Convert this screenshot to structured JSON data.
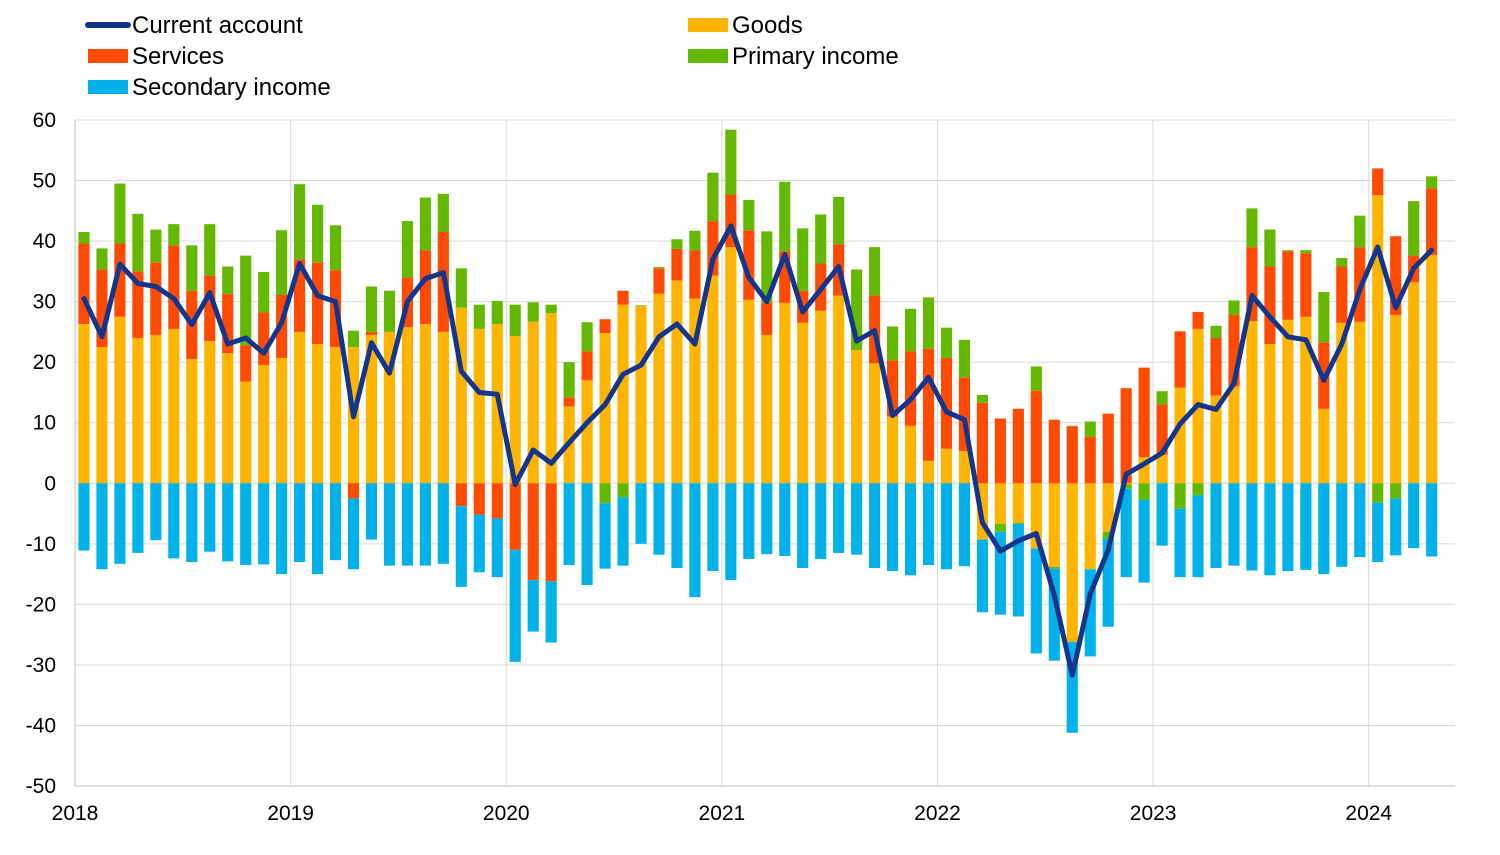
{
  "chart_data": {
    "type": "bar",
    "subtype": "stacked bar with line overlay",
    "x_start": "2018-01",
    "x_end": "2024-04",
    "x_frequency": "monthly",
    "ylim": [
      -50,
      60
    ],
    "yticks": [
      -50,
      -40,
      -30,
      -20,
      -10,
      0,
      10,
      20,
      30,
      40,
      50,
      60
    ],
    "xticks": [
      "2018",
      "2019",
      "2020",
      "2021",
      "2022",
      "2023",
      "2024"
    ],
    "grid": true,
    "legend_position": "top",
    "series": [
      {
        "name": "Current account",
        "kind": "line",
        "color": "#13368c",
        "values": [
          30.5,
          24.2,
          36.2,
          33.0,
          32.5,
          30.5,
          26.2,
          31.5,
          23.0,
          24.0,
          21.5,
          26.5,
          36.3,
          31.0,
          30.0,
          11.0,
          23.2,
          18.2,
          30.0,
          33.8,
          34.8,
          18.5,
          15.0,
          14.7,
          -0.2,
          5.5,
          3.3,
          6.7,
          10.0,
          13.0,
          18.0,
          19.5,
          24.2,
          26.3,
          23.0,
          37.0,
          42.5,
          34.0,
          30.0,
          37.8,
          28.3,
          32.0,
          35.8,
          23.5,
          25.2,
          11.2,
          13.8,
          17.5,
          11.8,
          10.5,
          -6.5,
          -11.2,
          -9.5,
          -8.3,
          -18.5,
          -31.7,
          -18.3,
          -11.0,
          1.5,
          3.2,
          5.0,
          9.8,
          13.0,
          12.2,
          16.5,
          31.0,
          27.5,
          24.2,
          23.7,
          17.0,
          23.0,
          32.0,
          39.0,
          29.0,
          35.5,
          38.5
        ]
      },
      {
        "name": "Goods",
        "kind": "bar",
        "color": "#ffb400",
        "values": [
          26.3,
          22.5,
          27.5,
          24.0,
          24.5,
          25.5,
          20.5,
          23.5,
          21.5,
          16.8,
          19.5,
          20.7,
          25.0,
          23.0,
          22.5,
          22.5,
          24.5,
          25.0,
          25.8,
          26.3,
          25.0,
          29.0,
          25.5,
          26.3,
          24.3,
          26.7,
          28.1,
          12.7,
          17.0,
          24.8,
          29.5,
          29.3,
          31.3,
          33.5,
          30.5,
          34.3,
          39.0,
          30.3,
          24.5,
          29.8,
          26.5,
          28.5,
          31.0,
          22.0,
          19.8,
          11.0,
          9.5,
          3.7,
          5.7,
          5.3,
          -9.3,
          -6.7,
          -6.5,
          -10.8,
          -13.8,
          -26.2,
          -14.2,
          -8.0,
          -0.2,
          4.3,
          4.7,
          15.8,
          25.5,
          14.5,
          16.0,
          26.8,
          23.0,
          27.0,
          27.5,
          12.3,
          26.5,
          26.7,
          47.6,
          27.8,
          33.2,
          37.7
        ]
      },
      {
        "name": "Services",
        "kind": "bar",
        "color": "#ff4b00",
        "values": [
          13.3,
          12.8,
          12.1,
          11.0,
          12.0,
          13.8,
          11.3,
          10.8,
          9.8,
          6.0,
          8.7,
          10.4,
          12.0,
          13.5,
          12.7,
          -2.5,
          0.5,
          0.0,
          8.2,
          12.2,
          16.5,
          -3.8,
          -5.2,
          -5.8,
          -11.0,
          -16.0,
          -16.2,
          1.5,
          4.8,
          2.3,
          2.3,
          0.0,
          4.2,
          5.2,
          8.0,
          9.0,
          8.7,
          11.5,
          5.3,
          8.5,
          5.3,
          7.8,
          8.5,
          0.0,
          11.2,
          9.3,
          12.3,
          18.5,
          15.0,
          12.2,
          13.3,
          10.7,
          12.3,
          15.3,
          10.5,
          9.4,
          7.7,
          11.5,
          15.7,
          14.8,
          8.3,
          9.3,
          2.8,
          9.5,
          11.8,
          12.2,
          12.8,
          11.3,
          10.5,
          11.0,
          9.3,
          12.3,
          4.4,
          13.0,
          4.4,
          11.0
        ]
      },
      {
        "name": "Primary income",
        "kind": "bar",
        "color": "#65b800",
        "values": [
          1.9,
          3.5,
          9.9,
          9.5,
          5.4,
          3.5,
          7.5,
          8.5,
          4.5,
          14.8,
          6.7,
          10.7,
          12.4,
          9.5,
          7.4,
          2.7,
          7.5,
          6.8,
          9.3,
          8.7,
          6.3,
          6.5,
          4.0,
          3.8,
          5.2,
          3.2,
          1.4,
          5.8,
          4.8,
          -3.3,
          -2.3,
          0.1,
          0.2,
          1.6,
          3.2,
          8.0,
          10.7,
          5.0,
          11.8,
          11.5,
          10.3,
          8.1,
          7.8,
          13.3,
          8.0,
          5.6,
          7.0,
          8.5,
          5.0,
          6.2,
          1.3,
          -1.3,
          -0.2,
          4.0,
          -0.3,
          0.1,
          2.5,
          -1.2,
          -0.7,
          -2.7,
          2.2,
          -4.2,
          -2.0,
          2.0,
          2.4,
          6.4,
          6.1,
          0.2,
          0.5,
          8.3,
          1.4,
          5.2,
          -3.2,
          -2.5,
          9.0,
          2.0
        ]
      },
      {
        "name": "Secondary income",
        "kind": "bar",
        "color": "#00b1ea",
        "values": [
          -11.1,
          -14.2,
          -13.3,
          -11.5,
          -9.4,
          -12.4,
          -13.0,
          -11.3,
          -12.9,
          -13.5,
          -13.4,
          -15.0,
          -13.0,
          -15.0,
          -12.7,
          -11.7,
          -9.3,
          -13.6,
          -13.6,
          -13.6,
          -13.3,
          -13.3,
          -9.5,
          -9.7,
          -18.5,
          -8.5,
          -10.1,
          -13.5,
          -16.8,
          -10.8,
          -11.3,
          -10.0,
          -11.8,
          -14.0,
          -18.8,
          -14.5,
          -16.0,
          -12.5,
          -11.7,
          -12.0,
          -14.0,
          -12.5,
          -11.5,
          -11.8,
          -14.0,
          -14.5,
          -15.2,
          -13.5,
          -14.2,
          -13.7,
          -12.0,
          -13.7,
          -15.3,
          -17.3,
          -15.2,
          -15.0,
          -14.4,
          -14.5,
          -14.6,
          -13.7,
          -10.3,
          -11.3,
          -13.5,
          -14.0,
          -13.6,
          -14.4,
          -15.2,
          -14.5,
          -14.3,
          -15.0,
          -13.8,
          -12.2,
          -9.8,
          -9.4,
          -10.7,
          -12.1
        ]
      }
    ]
  }
}
